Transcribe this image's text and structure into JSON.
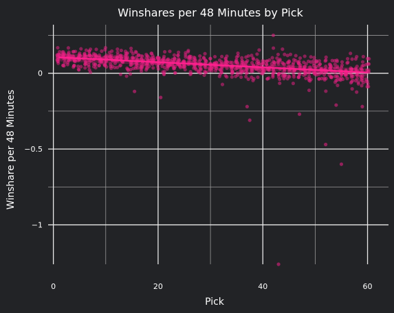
{
  "colors": {
    "background": "#222326",
    "grid_major": "#e9e9e9",
    "grid_minor": "#9a9a9a",
    "text": "#ffffff",
    "points": "#e0207f",
    "trend": "#ff1f8e"
  },
  "chart_data": {
    "type": "scatter",
    "title": "Winshares per 48 Minutes by Pick",
    "xlabel": "Pick",
    "ylabel": "Winshare per 48 Minutes",
    "xlim": [
      -1,
      64
    ],
    "ylim": [
      -1.26,
      0.32
    ],
    "x_ticks": [
      0,
      20,
      40,
      60
    ],
    "x_tick_labels": [
      "0",
      "20",
      "40",
      "60"
    ],
    "x_minor_ticks": [
      10,
      30,
      50
    ],
    "y_ticks": [
      0,
      -0.5,
      -1
    ],
    "y_tick_labels": [
      "0",
      "−0.5",
      "−1"
    ],
    "y_minor_ticks": [
      0.25,
      -0.25,
      -0.75
    ],
    "grid": true,
    "legend": "none",
    "trend_line": {
      "x": [
        1,
        60
      ],
      "y": [
        0.105,
        0.005
      ]
    },
    "notable_points": [
      {
        "x": 37,
        "y": -0.22
      },
      {
        "x": 37.5,
        "y": -0.31
      },
      {
        "x": 47,
        "y": -0.27
      },
      {
        "x": 52,
        "y": -0.47
      },
      {
        "x": 55,
        "y": -0.6
      },
      {
        "x": 43,
        "y": -1.26
      },
      {
        "x": 15.5,
        "y": -0.12
      },
      {
        "x": 20.5,
        "y": -0.16
      },
      {
        "x": 42,
        "y": 0.25
      },
      {
        "x": 54,
        "y": -0.21
      },
      {
        "x": 59,
        "y": -0.22
      }
    ],
    "points_per_pick": 15,
    "point_spread": 0.055
  }
}
